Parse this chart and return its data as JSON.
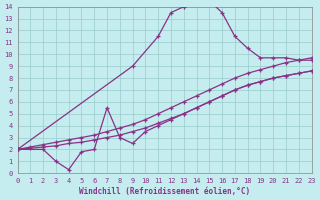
{
  "xlabel": "Windchill (Refroidissement éolien,°C)",
  "background_color": "#c5ecee",
  "plot_color": "#883388",
  "grid_color": "#99cccc",
  "xlim": [
    0,
    23
  ],
  "ylim": [
    0,
    14
  ],
  "xticks": [
    0,
    1,
    2,
    3,
    4,
    5,
    6,
    7,
    8,
    9,
    10,
    11,
    12,
    13,
    14,
    15,
    16,
    17,
    18,
    19,
    20,
    21,
    22,
    23
  ],
  "yticks": [
    0,
    1,
    2,
    3,
    4,
    5,
    6,
    7,
    8,
    9,
    10,
    11,
    12,
    13,
    14
  ],
  "line_peak_x": [
    0,
    9,
    11,
    12,
    13,
    14,
    15,
    16,
    17,
    18,
    19,
    20,
    21,
    22,
    23
  ],
  "line_peak_y": [
    2.0,
    9.0,
    11.5,
    13.5,
    14.0,
    14.5,
    14.5,
    13.5,
    11.5,
    10.5,
    9.7,
    9.7,
    9.7,
    9.5,
    9.5
  ],
  "line_upper_x": [
    0,
    1,
    2,
    3,
    4,
    5,
    6,
    7,
    8,
    9,
    10,
    11,
    12,
    13,
    14,
    15,
    16,
    17,
    18,
    19,
    20,
    21,
    22,
    23
  ],
  "line_upper_y": [
    2.0,
    2.2,
    2.4,
    2.6,
    2.8,
    3.0,
    3.2,
    3.5,
    3.8,
    4.1,
    4.5,
    5.0,
    5.5,
    6.0,
    6.5,
    7.0,
    7.5,
    8.0,
    8.4,
    8.7,
    9.0,
    9.3,
    9.5,
    9.7
  ],
  "line_mid_x": [
    0,
    1,
    2,
    3,
    4,
    5,
    6,
    7,
    8,
    9,
    10,
    11,
    12,
    13,
    14,
    15,
    16,
    17,
    18,
    19,
    20,
    21,
    22,
    23
  ],
  "line_mid_y": [
    2.0,
    2.1,
    2.2,
    2.3,
    2.5,
    2.6,
    2.8,
    3.0,
    3.2,
    3.5,
    3.8,
    4.2,
    4.6,
    5.0,
    5.5,
    6.0,
    6.5,
    7.0,
    7.4,
    7.7,
    8.0,
    8.2,
    8.4,
    8.6
  ],
  "line_dip_x": [
    0,
    2,
    3,
    4,
    5,
    6,
    7,
    8,
    9,
    10,
    11,
    12,
    13,
    14,
    15,
    16,
    17,
    18,
    19,
    20,
    21,
    22,
    23
  ],
  "line_dip_y": [
    2.0,
    2.0,
    1.0,
    0.3,
    1.8,
    2.0,
    5.5,
    3.0,
    2.5,
    3.5,
    4.0,
    4.5,
    5.0,
    5.5,
    6.0,
    6.5,
    7.0,
    7.4,
    7.7,
    8.0,
    8.2,
    8.4,
    8.6
  ]
}
